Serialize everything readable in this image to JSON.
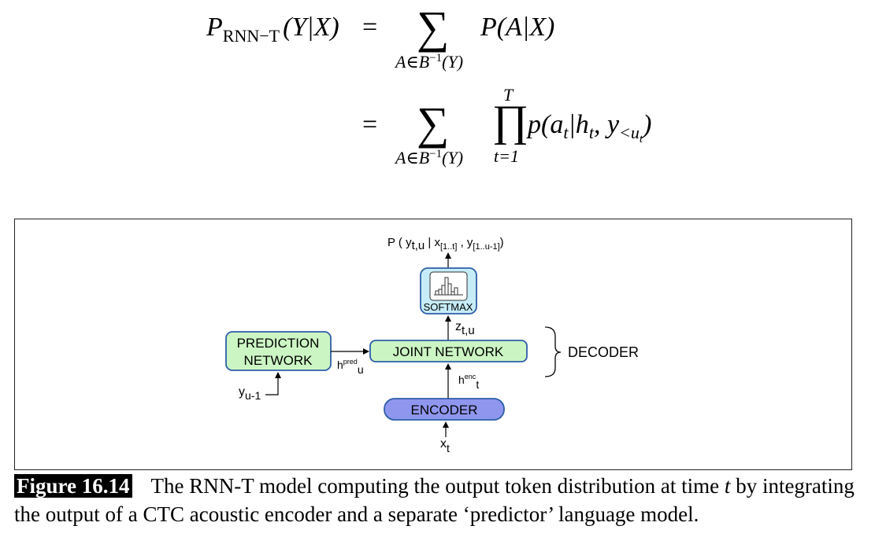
{
  "equation": {
    "lhs_P": "P",
    "lhs_sub": "RNN−T",
    "lhs_args": "(Y|X)",
    "eq_sign": "=",
    "sum_sub_A": "A∈B",
    "sum_sub_exp": "−1",
    "sum_sub_Y": "(Y)",
    "term1": "P(A|X)",
    "prod_top": "T",
    "prod_bottom": "t=1",
    "term2_p": "p(a",
    "term2_t": "t",
    "term2_h": "|h",
    "term2_ht": "t",
    "term2_y": ", y",
    "term2_ysub": "<u",
    "term2_ysubt": "t",
    "term2_close": ")"
  },
  "diagram": {
    "output_label": "P ( y",
    "output_sub_tu": "t,u",
    "output_mid": " | x",
    "output_sub_x": "[1..t]",
    "output_comma": " , y",
    "output_sub_y": "[1..u-1]",
    "output_close": ")",
    "softmax_label": "SOFTMAX",
    "z_label": "z",
    "z_sub": "t,u",
    "joint_label": "JOINT NETWORK",
    "prediction_line1": "PREDICTION",
    "prediction_line2": "NETWORK",
    "hpred_h": "h",
    "hpred_sup": "pred",
    "hpred_sub": "u",
    "henc_h": "h",
    "henc_sup": "enc",
    "henc_sub": "t",
    "encoder_label": "ENCODER",
    "x_label": "x",
    "x_sub": "t",
    "y_label": "y",
    "y_sub": "u-1",
    "decoder_label": "DECODER",
    "colors": {
      "green_fill": "#ccf5c4",
      "green_stroke": "#2e5ea8",
      "blue_fill": "#8f96ee",
      "cyan_fill": "#c6ecf7"
    }
  },
  "caption": {
    "label": "Figure 16.14",
    "text_before": "The RNN-T model computing the output token distribution at time ",
    "text_t": "t",
    "text_after": " by integrating the output of a CTC acoustic encoder and a separate ‘predictor’ language model."
  }
}
